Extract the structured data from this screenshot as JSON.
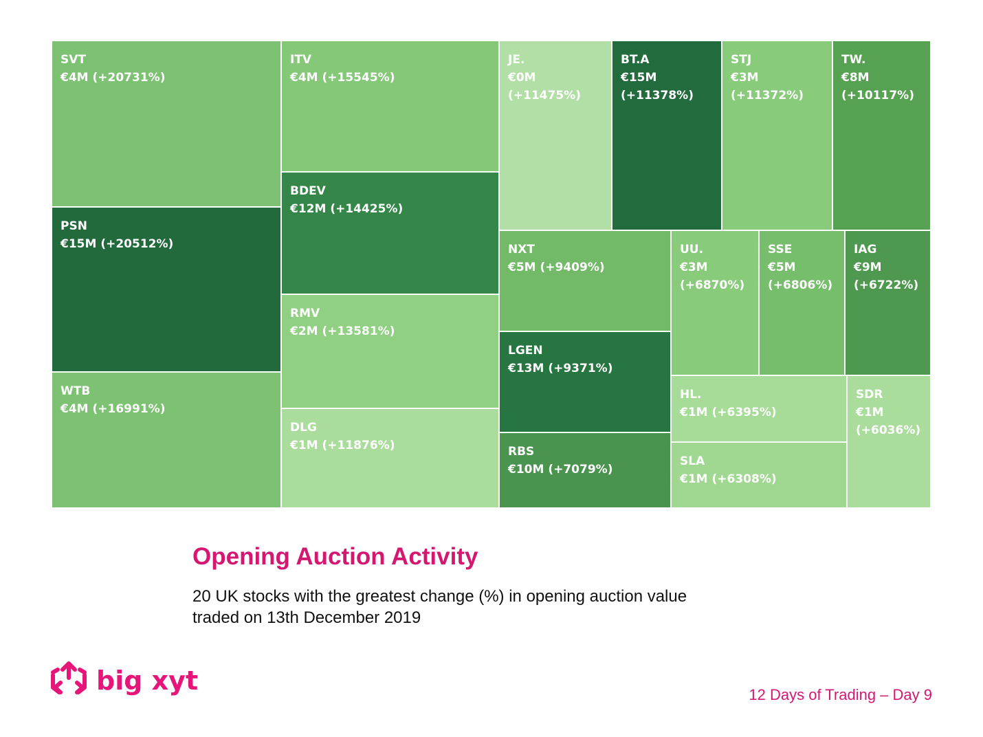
{
  "chart_data": {
    "type": "treemap",
    "title": "Opening Auction Activity",
    "subtitle_lines": [
      "20 UK stocks with the greatest change (%) in opening auction value",
      "traded on 13th December 2019"
    ],
    "items": [
      {
        "ticker": "SVT",
        "value_label": "€4M",
        "value_m": 4,
        "change_label": "(+20731%)",
        "change_pct": 20731,
        "color": "#7dc272"
      },
      {
        "ticker": "PSN",
        "value_label": "€15M",
        "value_m": 15,
        "change_label": "(+20512%)",
        "change_pct": 20512,
        "color": "#22693c"
      },
      {
        "ticker": "WTB",
        "value_label": "€4M",
        "value_m": 4,
        "change_label": "(+16991%)",
        "change_pct": 16991,
        "color": "#7dc272"
      },
      {
        "ticker": "ITV",
        "value_label": "€4M",
        "value_m": 4,
        "change_label": "(+15545%)",
        "change_pct": 15545,
        "color": "#84c878"
      },
      {
        "ticker": "BDEV",
        "value_label": "€12M",
        "value_m": 12,
        "change_label": "(+14425%)",
        "change_pct": 14425,
        "color": "#358649"
      },
      {
        "ticker": "RMV",
        "value_label": "€2M",
        "value_m": 2,
        "change_label": "(+13581%)",
        "change_pct": 13581,
        "color": "#8fd082"
      },
      {
        "ticker": "DLG",
        "value_label": "€1M",
        "value_m": 1,
        "change_label": "(+11876%)",
        "change_pct": 11876,
        "color": "#aadd9c"
      },
      {
        "ticker": "JE.",
        "value_label": "€0M",
        "value_m": 0,
        "change_label": "(+11475%)",
        "change_pct": 11475,
        "color": "#b2dfa6"
      },
      {
        "ticker": "BT.A",
        "value_label": "€15M",
        "value_m": 15,
        "change_label": "(+11378%)",
        "change_pct": 11378,
        "color": "#216b3d"
      },
      {
        "ticker": "STJ",
        "value_label": "€3M",
        "value_m": 3,
        "change_label": "(+11372%)",
        "change_pct": 11372,
        "color": "#88cb7b"
      },
      {
        "ticker": "TW.",
        "value_label": "€8M",
        "value_m": 8,
        "change_label": "(+10117%)",
        "change_pct": 10117,
        "color": "#57a252"
      },
      {
        "ticker": "NXT",
        "value_label": "€5M",
        "value_m": 5,
        "change_label": "(+9409%)",
        "change_pct": 9409,
        "color": "#72b968"
      },
      {
        "ticker": "LGEN",
        "value_label": "€13M",
        "value_m": 13,
        "change_label": "(+9371%)",
        "change_pct": 9371,
        "color": "#277540"
      },
      {
        "ticker": "RBS",
        "value_label": "€10M",
        "value_m": 10,
        "change_label": "(+7079%)",
        "change_pct": 7079,
        "color": "#4b944f"
      },
      {
        "ticker": "UU.",
        "value_label": "€3M",
        "value_m": 3,
        "change_label": "(+6870%)",
        "change_pct": 6870,
        "color": "#88cb7b"
      },
      {
        "ticker": "SSE",
        "value_label": "€5M",
        "value_m": 5,
        "change_label": "(+6806%)",
        "change_pct": 6806,
        "color": "#76bd6c"
      },
      {
        "ticker": "IAG",
        "value_label": "€9M",
        "value_m": 9,
        "change_label": "(+6722%)",
        "change_pct": 6722,
        "color": "#4e9850"
      },
      {
        "ticker": "HL.",
        "value_label": "€1M",
        "value_m": 1,
        "change_label": "(+6395%)",
        "change_pct": 6395,
        "color": "#a6db98"
      },
      {
        "ticker": "SLA",
        "value_label": "€1M",
        "value_m": 1,
        "change_label": "(+6308%)",
        "change_pct": 6308,
        "color": "#a0d892"
      },
      {
        "ticker": "SDR",
        "value_label": "€1M",
        "value_m": 1,
        "change_label": "(+6036%)",
        "change_pct": 6036,
        "color": "#aadd9c"
      }
    ]
  },
  "logo": {
    "text": "big xyt",
    "color": "#e5157a"
  },
  "footer": {
    "text": "12 Days of Trading – Day 9"
  }
}
